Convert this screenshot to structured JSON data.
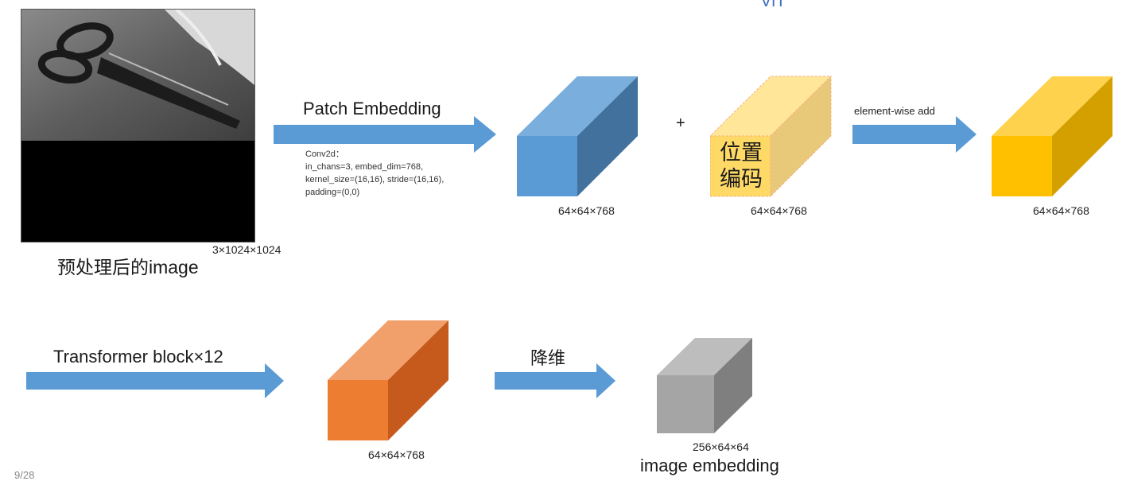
{
  "header": {
    "title_fragment": "ViT"
  },
  "input": {
    "caption": "预处理后的image",
    "dims": "3×1024×1024",
    "image_icon": "scissors-photo"
  },
  "patch_embedding": {
    "label": "Patch Embedding",
    "conv_title": "Conv2d：",
    "conv_line1": "in_chans=3, embed_dim=768,",
    "conv_line2": "kernel_size=(16,16), stride=(16,16),",
    "conv_line3": "padding=(0,0)"
  },
  "patch_tensor": {
    "dims": "64×64×768",
    "color": "#5b9bd5"
  },
  "plus": "+",
  "position_encoding": {
    "label": "位置\n编码",
    "dims": "64×64×768",
    "color": "#ffd966"
  },
  "add": {
    "label": "element-wise add"
  },
  "sum_tensor": {
    "dims": "64×64×768",
    "color": "#ffc000"
  },
  "transformer": {
    "label": "Transformer block×12"
  },
  "transformer_tensor": {
    "dims": "64×64×768",
    "color": "#ed7d31"
  },
  "reduce": {
    "label": "降维"
  },
  "output_tensor": {
    "dims": "256×64×64",
    "caption": "image embedding",
    "color": "#a5a5a5"
  },
  "arrow_color": "#5b9bd5",
  "page_number": "9/28"
}
